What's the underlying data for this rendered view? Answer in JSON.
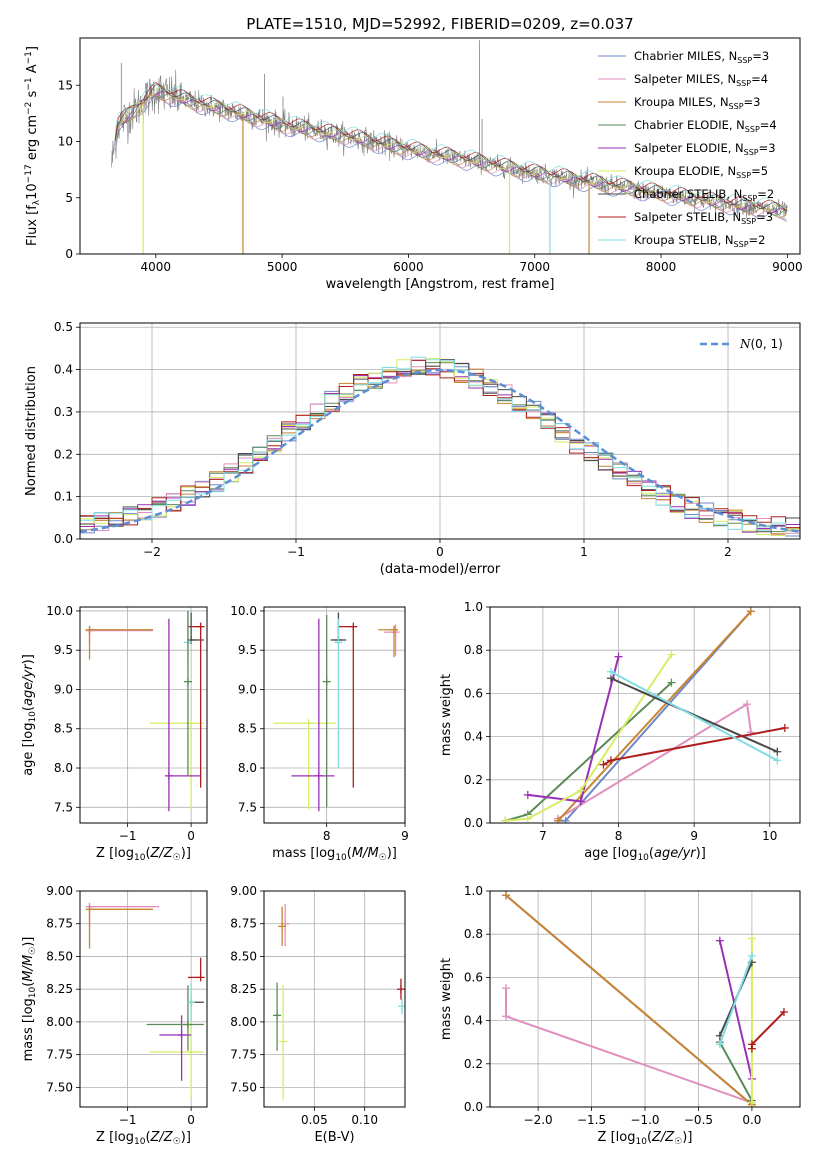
{
  "figure": {
    "title": "PLATE=1510, MJD=52992, FIBERID=0209, z=0.037"
  },
  "legend_entries": [
    {
      "name": "Chabrier MILES, N_SSP=3",
      "color": "#6f87c7"
    },
    {
      "name": "Salpeter MILES, N_SSP=4",
      "color": "#e08fbd"
    },
    {
      "name": "Kroupa MILES, N_SSP=3",
      "color": "#c8842e"
    },
    {
      "name": "Chabrier ELODIE, N_SSP=4",
      "color": "#5a8a55"
    },
    {
      "name": "Salpeter ELODIE, N_SSP=3",
      "color": "#9b2fb6"
    },
    {
      "name": "Kroupa ELODIE, N_SSP=5",
      "color": "#d6ec62"
    },
    {
      "name": "Chabrier STELIB, N_SSP=2",
      "color": "#4a4a4a"
    },
    {
      "name": "Salpeter STELIB, N_SSP=3",
      "color": "#b01d1d"
    },
    {
      "name": "Kroupa STELIB, N_SSP=2",
      "color": "#7fdde3"
    }
  ],
  "chart_data": [
    {
      "type": "line",
      "id": "spectrum",
      "xlabel": "wavelength [Angstrom, rest frame]",
      "ylabel": "Flux [f_λ 10^-17 erg cm^-2 s^-1 A^-1]",
      "xlim": [
        3400,
        9100
      ],
      "ylim": [
        0,
        19.2
      ],
      "xticks": [
        4000,
        5000,
        6000,
        7000,
        8000,
        9000
      ],
      "yticks": [
        0,
        5,
        10,
        15
      ],
      "grid": false,
      "legend_position": "top-right",
      "continuum_anchors": {
        "x": [
          3650,
          3700,
          3850,
          4000,
          4300,
          4600,
          5000,
          5500,
          6000,
          6500,
          7000,
          7500,
          8000,
          8500,
          9000
        ],
        "y": [
          8.0,
          11.5,
          13.0,
          14.5,
          13.5,
          12.7,
          11.5,
          10.5,
          9.3,
          8.3,
          7.2,
          6.3,
          5.4,
          4.5,
          3.8
        ]
      }
    },
    {
      "type": "histogram",
      "id": "residuals",
      "xlabel": "(data-model)/error",
      "ylabel": "Normed distribution",
      "xlim": [
        -2.5,
        2.5
      ],
      "ylim": [
        0,
        0.51
      ],
      "xticks": [
        -2,
        -1,
        0,
        1,
        2
      ],
      "yticks": [
        0.0,
        0.1,
        0.2,
        0.3,
        0.4,
        0.5
      ],
      "grid": true,
      "bin_width": 0.1,
      "reference_curve": {
        "name": "N(0,1)",
        "mean": 0,
        "sigma": 1,
        "style": "dashed",
        "color": "#5b8fd6"
      },
      "legend_position": "top-right"
    },
    {
      "type": "scatter",
      "id": "age_vs_Z",
      "xlabel": "Z [log10(Z/Z☉)]",
      "ylabel": "age [log10(age/yr)]",
      "xlim": [
        -1.75,
        0.25
      ],
      "ylim": [
        7.3,
        10.05
      ],
      "xticks": [
        -1,
        0
      ],
      "yticks": [
        7.5,
        8.0,
        8.5,
        9.0,
        9.5,
        10.0
      ],
      "grid": true,
      "points": [
        {
          "series": "Salpeter MILES",
          "x": -1.6,
          "y": 9.75,
          "x_err": [
            0,
            1.0
          ],
          "y_err": [
            0.15,
            0.0
          ],
          "color": "#e08fbd"
        },
        {
          "series": "Kroupa MILES",
          "x": -1.6,
          "y": 9.76,
          "x_err": [
            0,
            1.0
          ],
          "y_err": [
            0.38,
            0.0
          ],
          "color": "#c8842e"
        },
        {
          "series": "Kroupa ELODIE",
          "x": 0.0,
          "y": 8.57,
          "x_err": [
            0.65,
            0.2
          ],
          "y_err": [
            1.1,
            0.0
          ],
          "color": "#d6ec62"
        },
        {
          "series": "Salpeter ELODIE",
          "x": -0.35,
          "y": 7.9,
          "x_err": [
            0.0,
            0.5
          ],
          "y_err": [
            0.45,
            2.0
          ],
          "color": "#9b2fb6"
        },
        {
          "series": "Chabrier STELIB",
          "x": 0.0,
          "y": 9.63,
          "x_err": [
            0.0,
            0.2
          ],
          "y_err": [
            0.0,
            0.35
          ],
          "color": "#4a4a4a"
        },
        {
          "series": "Salpeter STELIB",
          "x": 0.15,
          "y": 9.8,
          "x_err": [
            0.2,
            0.0
          ],
          "y_err": [
            2.05,
            0.0
          ],
          "color": "#b01d1d"
        },
        {
          "series": "Kroupa STELIB",
          "x": -0.05,
          "y": 9.6,
          "x_err": [
            0,
            0
          ],
          "y_err": [
            0.3,
            0.4
          ],
          "color": "#7fdde3"
        },
        {
          "series": "Chabrier ELODIE",
          "x": -0.05,
          "y": 9.1,
          "x_err": [
            0,
            0
          ],
          "y_err": [
            1.2,
            0.9
          ],
          "color": "#5a8a55"
        }
      ]
    },
    {
      "type": "scatter",
      "id": "age_vs_mass",
      "xlabel": "mass [log10(M/M☉)]",
      "ylabel": "",
      "xlim": [
        7.2,
        9.0
      ],
      "ylim": [
        7.3,
        10.05
      ],
      "xticks": [
        8,
        9
      ],
      "yticks": [
        7.5,
        8.0,
        8.5,
        9.0,
        9.5,
        10.0
      ],
      "grid": true,
      "points": [
        {
          "series": "Salpeter MILES",
          "x": 8.88,
          "y": 9.73,
          "x_err": [
            0.15,
            0.0
          ],
          "y_err": [
            0.3,
            0.1
          ],
          "color": "#e08fbd"
        },
        {
          "series": "Kroupa MILES",
          "x": 8.86,
          "y": 9.76,
          "x_err": [
            0.2,
            0.0
          ],
          "y_err": [
            0.35,
            0.05
          ],
          "color": "#c8842e"
        },
        {
          "series": "Kroupa ELODIE",
          "x": 7.77,
          "y": 8.57,
          "x_err": [
            0.45,
            0.35
          ],
          "y_err": [
            1.1,
            0.0
          ],
          "color": "#d6ec62"
        },
        {
          "series": "Salpeter ELODIE",
          "x": 7.9,
          "y": 7.9,
          "x_err": [
            0.35,
            0.2
          ],
          "y_err": [
            0.45,
            2.0
          ],
          "color": "#9b2fb6"
        },
        {
          "series": "Chabrier STELIB",
          "x": 8.15,
          "y": 9.63,
          "x_err": [
            0.1,
            0.1
          ],
          "y_err": [
            0.0,
            0.35
          ],
          "color": "#4a4a4a"
        },
        {
          "series": "Salpeter STELIB",
          "x": 8.34,
          "y": 9.8,
          "x_err": [
            0.2,
            0.0
          ],
          "y_err": [
            2.05,
            0.0
          ],
          "color": "#b01d1d"
        },
        {
          "series": "Kroupa STELIB",
          "x": 8.15,
          "y": 9.6,
          "x_err": [
            0,
            0
          ],
          "y_err": [
            1.6,
            0.3
          ],
          "color": "#7fdde3"
        },
        {
          "series": "Chabrier ELODIE",
          "x": 8.0,
          "y": 9.1,
          "x_err": [
            0,
            0
          ],
          "y_err": [
            1.6,
            0.85
          ],
          "color": "#5a8a55"
        }
      ]
    },
    {
      "type": "line",
      "id": "weight_vs_age",
      "xlabel": "age [log10(age/yr)]",
      "ylabel": "mass weight",
      "xlim": [
        6.3,
        10.4
      ],
      "ylim": [
        0,
        1.0
      ],
      "xticks": [
        7,
        8,
        9,
        10
      ],
      "yticks": [
        0.0,
        0.2,
        0.4,
        0.6,
        0.8,
        1.0
      ],
      "grid": true,
      "series": [
        {
          "name": "Chabrier MILES",
          "color": "#6f87c7",
          "x": [
            7.2,
            7.3,
            9.75
          ],
          "y": [
            0.01,
            0.01,
            0.98
          ]
        },
        {
          "name": "Salpeter MILES",
          "color": "#e08fbd",
          "x": [
            7.2,
            9.7,
            9.75
          ],
          "y": [
            0.02,
            0.55,
            0.42
          ]
        },
        {
          "name": "Kroupa MILES",
          "color": "#c8842e",
          "x": [
            7.2,
            9.75
          ],
          "y": [
            0.01,
            0.98
          ]
        },
        {
          "name": "Chabrier ELODIE",
          "color": "#5a8a55",
          "x": [
            6.5,
            6.8,
            8.7
          ],
          "y": [
            0.01,
            0.04,
            0.65
          ]
        },
        {
          "name": "Salpeter ELODIE",
          "color": "#9b2fb6",
          "x": [
            6.8,
            7.5,
            8.0
          ],
          "y": [
            0.13,
            0.1,
            0.77
          ]
        },
        {
          "name": "Kroupa ELODIE",
          "color": "#d6ec62",
          "x": [
            6.5,
            6.8,
            7.5,
            8.7
          ],
          "y": [
            0.01,
            0.02,
            0.15,
            0.78
          ]
        },
        {
          "name": "Chabrier STELIB",
          "color": "#4a4a4a",
          "x": [
            7.9,
            10.1
          ],
          "y": [
            0.67,
            0.33
          ]
        },
        {
          "name": "Salpeter STELIB",
          "color": "#b01d1d",
          "x": [
            7.8,
            7.9,
            10.2
          ],
          "y": [
            0.27,
            0.29,
            0.44
          ]
        },
        {
          "name": "Kroupa STELIB",
          "color": "#7fdde3",
          "x": [
            7.9,
            10.1
          ],
          "y": [
            0.7,
            0.29
          ]
        }
      ]
    },
    {
      "type": "scatter",
      "id": "mass_vs_Z",
      "xlabel": "Z [log10(Z/Z☉)]",
      "ylabel": "mass [log10(M/M☉)]",
      "xlim": [
        -1.75,
        0.25
      ],
      "ylim": [
        7.35,
        9.0
      ],
      "xticks": [
        -1,
        0
      ],
      "yticks": [
        7.5,
        7.75,
        8.0,
        8.25,
        8.5,
        8.75,
        9.0
      ],
      "grid": true,
      "points": [
        {
          "series": "Salpeter MILES",
          "x": -1.6,
          "y": 8.88,
          "x_err": [
            0,
            1.1
          ],
          "y_err": [
            0.15,
            0.0
          ],
          "color": "#e08fbd"
        },
        {
          "series": "Kroupa MILES",
          "x": -1.6,
          "y": 8.86,
          "x_err": [
            0,
            1.0
          ],
          "y_err": [
            0.3,
            0.0
          ],
          "color": "#c8842e"
        },
        {
          "series": "Kroupa ELODIE",
          "x": 0.0,
          "y": 7.77,
          "x_err": [
            0.65,
            0.2
          ],
          "y_err": [
            0.35,
            0.5
          ],
          "color": "#d6ec62"
        },
        {
          "series": "Salpeter ELODIE",
          "x": -0.15,
          "y": 7.9,
          "x_err": [
            0.35,
            0.15
          ],
          "y_err": [
            0.35,
            0.15
          ],
          "color": "#9b2fb6"
        },
        {
          "series": "Chabrier ELODIE",
          "x": -0.05,
          "y": 7.98,
          "x_err": [
            0.65,
            0.25
          ],
          "y_err": [
            0.2,
            0.3
          ],
          "color": "#5a8a55"
        },
        {
          "series": "Chabrier STELIB",
          "x": 0.0,
          "y": 8.15,
          "x_err": [
            0.0,
            0.2
          ],
          "y_err": [
            0.0,
            0.0
          ],
          "color": "#4a4a4a"
        },
        {
          "series": "Salpeter STELIB",
          "x": 0.15,
          "y": 8.34,
          "x_err": [
            0.2,
            0.0
          ],
          "y_err": [
            0.0,
            0.15
          ],
          "color": "#b01d1d"
        },
        {
          "series": "Kroupa STELIB",
          "x": 0.0,
          "y": 8.15,
          "x_err": [
            0,
            0
          ],
          "y_err": [
            0.15,
            0.15
          ],
          "color": "#7fdde3"
        }
      ]
    },
    {
      "type": "scatter",
      "id": "mass_vs_ebv",
      "xlabel": "E(B-V)",
      "ylabel": "",
      "xlim": [
        0.0,
        0.14
      ],
      "ylim": [
        7.35,
        9.0
      ],
      "xticks": [
        0.05,
        0.1
      ],
      "yticks": [
        7.5,
        7.75,
        8.0,
        8.25,
        8.5,
        8.75,
        9.0
      ],
      "grid": true,
      "points": [
        {
          "series": "Salpeter MILES",
          "x": 0.021,
          "y": 8.75,
          "y_err": [
            0.17,
            0.15
          ],
          "color": "#e08fbd"
        },
        {
          "series": "Kroupa MILES",
          "x": 0.018,
          "y": 8.73,
          "y_err": [
            0.15,
            0.15
          ],
          "color": "#c8842e"
        },
        {
          "series": "Chabrier ELODIE",
          "x": 0.013,
          "y": 8.05,
          "y_err": [
            0.27,
            0.25
          ],
          "color": "#5a8a55"
        },
        {
          "series": "Kroupa ELODIE",
          "x": 0.019,
          "y": 7.85,
          "y_err": [
            0.45,
            0.43
          ],
          "color": "#d6ec62"
        },
        {
          "series": "Salpeter STELIB",
          "x": 0.136,
          "y": 8.25,
          "y_err": [
            0.08,
            0.08
          ],
          "color": "#b01d1d"
        },
        {
          "series": "Kroupa STELIB",
          "x": 0.137,
          "y": 8.12,
          "y_err": [
            0.06,
            0.06
          ],
          "color": "#7fdde3"
        }
      ]
    },
    {
      "type": "line",
      "id": "weight_vs_Z",
      "xlabel": "Z [log10(Z/Z☉)]",
      "ylabel": "mass weight",
      "xlim": [
        -2.45,
        0.45
      ],
      "ylim": [
        0,
        1.0
      ],
      "xticks": [
        -2.0,
        -1.5,
        -1.0,
        -0.5,
        0.0
      ],
      "yticks": [
        0.0,
        0.2,
        0.4,
        0.6,
        0.8,
        1.0
      ],
      "grid": true,
      "series": [
        {
          "name": "Chabrier MILES",
          "color": "#6f87c7",
          "x": [
            -2.3,
            0.0
          ],
          "y": [
            0.98,
            0.01
          ]
        },
        {
          "name": "Salpeter MILES",
          "color": "#e08fbd",
          "x": [
            -2.3,
            -2.3,
            0.0
          ],
          "y": [
            0.55,
            0.42,
            0.02
          ]
        },
        {
          "name": "Kroupa MILES",
          "color": "#c8842e",
          "x": [
            -2.3,
            0.0
          ],
          "y": [
            0.98,
            0.01
          ]
        },
        {
          "name": "Chabrier ELODIE",
          "color": "#5a8a55",
          "x": [
            -0.3,
            0.0
          ],
          "y": [
            0.3,
            0.03
          ]
        },
        {
          "name": "Salpeter ELODIE",
          "color": "#9b2fb6",
          "x": [
            -0.3,
            0.0
          ],
          "y": [
            0.77,
            0.13
          ]
        },
        {
          "name": "Kroupa ELODIE",
          "color": "#d6ec62",
          "x": [
            0.0,
            0.0
          ],
          "y": [
            0.02,
            0.78
          ]
        },
        {
          "name": "Chabrier STELIB",
          "color": "#4a4a4a",
          "x": [
            -0.3,
            0.0
          ],
          "y": [
            0.33,
            0.67
          ]
        },
        {
          "name": "Salpeter STELIB",
          "color": "#b01d1d",
          "x": [
            0.0,
            0.0,
            0.3
          ],
          "y": [
            0.27,
            0.29,
            0.44
          ]
        },
        {
          "name": "Kroupa STELIB",
          "color": "#7fdde3",
          "x": [
            -0.3,
            0.0
          ],
          "y": [
            0.29,
            0.7
          ]
        }
      ]
    }
  ]
}
